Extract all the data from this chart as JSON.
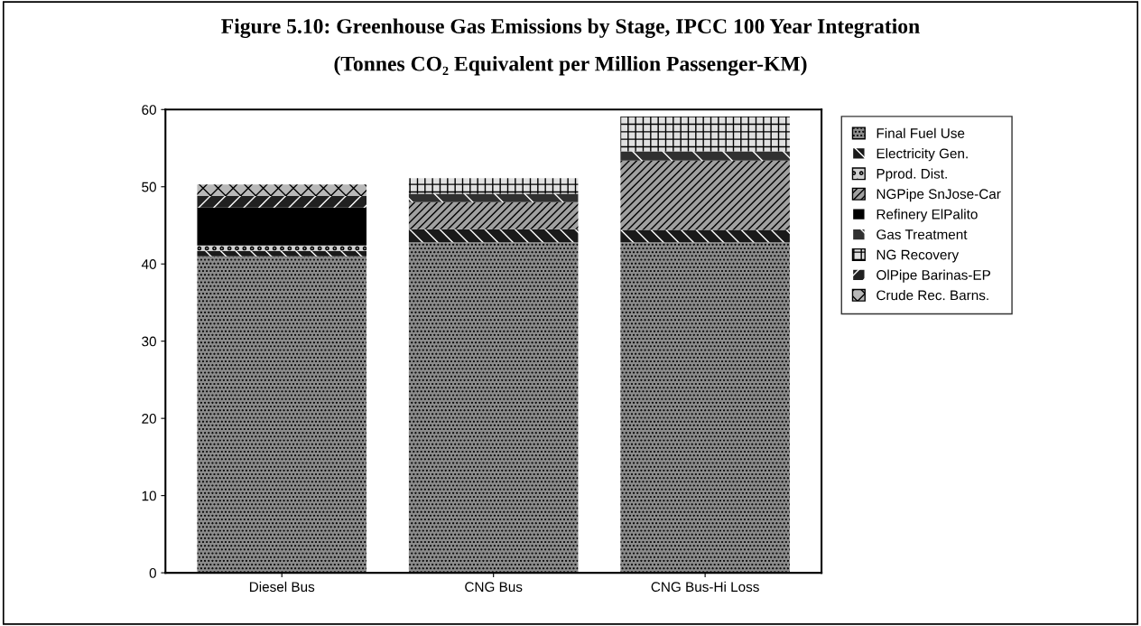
{
  "chart_data": {
    "type": "bar",
    "stacked": true,
    "title": "Figure 5.10: Greenhouse Gas Emissions by Stage, IPCC 100 Year Integration",
    "subtitle": "(Tonnes CO₂ Equivalent per Million Passenger-KM)",
    "categories": [
      "Diesel Bus",
      "CNG Bus",
      "CNG Bus-Hi Loss"
    ],
    "ylim": [
      0,
      60
    ],
    "yticks": [
      0,
      10,
      20,
      30,
      40,
      50,
      60
    ],
    "grid": false,
    "legend": "right",
    "series": [
      {
        "name": "Final Fuel Use",
        "color": "#8c8c8c",
        "values": [
          41.0,
          42.8,
          42.8
        ]
      },
      {
        "name": "Electricity Gen.",
        "color": "#1a1a1a",
        "values": [
          0.7,
          1.7,
          1.6
        ]
      },
      {
        "name": "Pprod. Dist.",
        "color": "#d0d0d0",
        "values": [
          0.7,
          0,
          0
        ]
      },
      {
        "name": "NGPipe SnJose-Car",
        "color": "#a0a0a0",
        "values": [
          0,
          3.5,
          9.0
        ]
      },
      {
        "name": "Refinery ElPalito",
        "color": "#000000",
        "values": [
          4.9,
          0,
          0
        ]
      },
      {
        "name": "Gas Treatment",
        "color": "#303030",
        "values": [
          0,
          1.1,
          1.2
        ]
      },
      {
        "name": "NG Recovery",
        "color": "#e0e0e0",
        "values": [
          0,
          2.0,
          4.5
        ]
      },
      {
        "name": "OlPipe Barinas-EP",
        "color": "#202020",
        "values": [
          1.5,
          0,
          0
        ]
      },
      {
        "name": "Crude Rec. Barns.",
        "color": "#b8b8b8",
        "values": [
          1.5,
          0,
          0
        ]
      }
    ]
  }
}
